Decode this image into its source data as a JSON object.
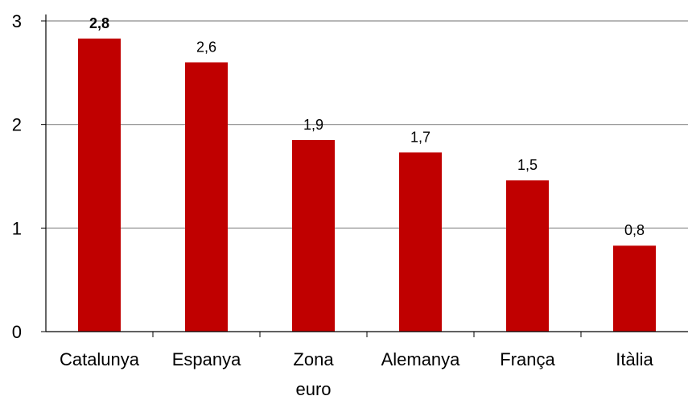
{
  "chart_data": {
    "type": "bar",
    "categories": [
      [
        "Catalunya"
      ],
      [
        "Espanya"
      ],
      [
        "Zona",
        "euro"
      ],
      [
        "Alemanya"
      ],
      [
        "França"
      ],
      [
        "Itàlia"
      ]
    ],
    "values": [
      2.83,
      2.6,
      1.85,
      1.73,
      1.46,
      0.83
    ],
    "data_labels": [
      "2,8",
      "2,6",
      "1,9",
      "1,7",
      "1,5",
      "0,8"
    ],
    "highlight_label_bold": [
      true,
      false,
      false,
      false,
      false,
      false
    ],
    "y_ticks": [
      0,
      1,
      2,
      3
    ],
    "ylim": [
      0,
      3
    ],
    "grid": true,
    "bar_color": "#c00000",
    "title": "",
    "xlabel": "",
    "ylabel": ""
  }
}
